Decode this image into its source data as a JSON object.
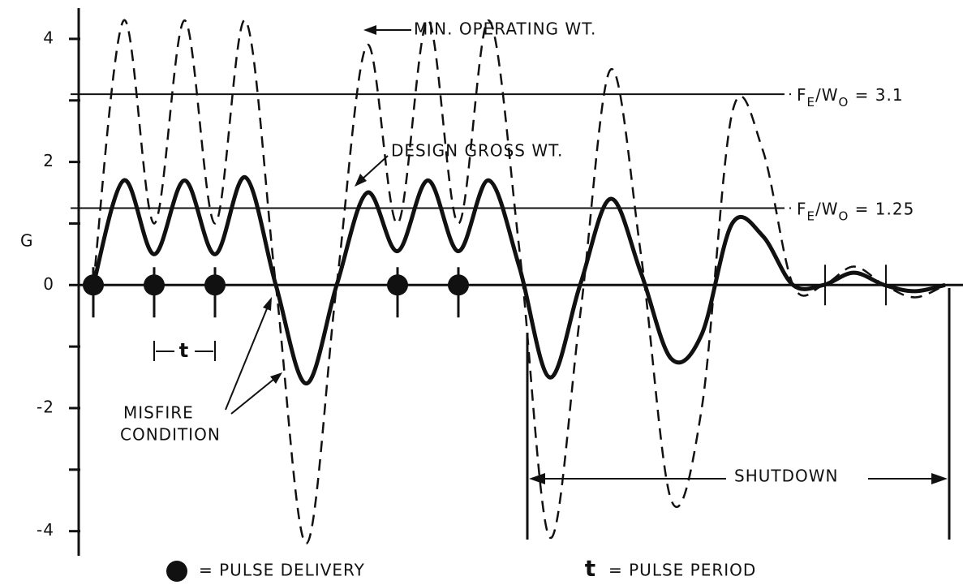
{
  "chart_data": {
    "type": "line",
    "y_label": "G",
    "ylim": [
      -4.4,
      4.5
    ],
    "yticks": [
      -4,
      -2,
      0,
      2,
      4
    ],
    "minor_yticks": [
      -3,
      -1,
      1,
      3
    ],
    "categories": [
      null,
      null,
      null,
      null,
      null,
      null,
      null,
      null,
      null,
      null,
      null,
      null,
      null,
      null,
      null,
      null,
      null,
      null,
      null,
      null,
      null,
      null,
      null,
      null,
      null,
      null,
      null,
      null,
      null
    ],
    "series": [
      {
        "name": "MIN. OPERATING WT.",
        "style": "dashed",
        "color": "#111111",
        "values": [
          0,
          4.3,
          1.0,
          4.3,
          1.0,
          4.3,
          0,
          -4.2,
          0,
          3.9,
          1.0,
          4.3,
          1.0,
          4.3,
          0.6,
          -4.1,
          -0.5,
          3.5,
          0.5,
          -3.5,
          -2,
          2.8,
          2.2,
          0,
          0,
          0.3,
          0,
          -0.2,
          0
        ]
      },
      {
        "name": "DESIGN GROSS WT.",
        "style": "solid",
        "color": "#111111",
        "values": [
          0,
          1.7,
          0.5,
          1.7,
          0.5,
          1.75,
          0,
          -1.6,
          0,
          1.5,
          0.55,
          1.7,
          0.55,
          1.7,
          0.3,
          -1.5,
          0,
          1.4,
          0.2,
          -1.2,
          -0.8,
          1.0,
          0.8,
          0,
          0,
          0.2,
          0,
          -0.1,
          0
        ]
      },
      {
        "name": "= PULSE DELIVERY",
        "style": "dots",
        "color": "#111111",
        "values": [
          0,
          null,
          0,
          null,
          0,
          null,
          null,
          null,
          null,
          null,
          0,
          null,
          0,
          null,
          null,
          null,
          null,
          null,
          null,
          null,
          null,
          null,
          null,
          null,
          null,
          null,
          null,
          null,
          null
        ]
      }
    ],
    "reference_lines": [
      {
        "value": 3.1,
        "label_parts": [
          "F",
          "E",
          "/W",
          "O",
          " = 3.1"
        ]
      },
      {
        "value": 1.25,
        "label_parts": [
          "F",
          "E",
          "/W",
          "O",
          " = 1.25"
        ]
      }
    ],
    "annotations": {
      "misfire": [
        "MISFIRE",
        "CONDITION"
      ],
      "shutdown": "SHUTDOWN",
      "period_symbol": "t",
      "period_legend": "= PULSE PERIOD"
    }
  }
}
